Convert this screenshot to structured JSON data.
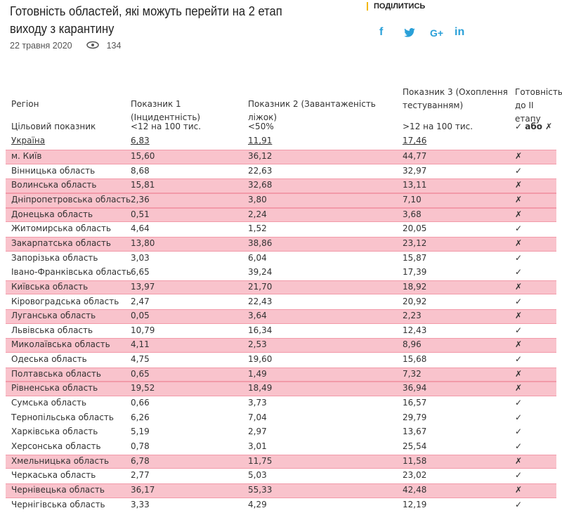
{
  "header": {
    "title": "Готовність областей, які можуть перейти на 2 етап виходу з карантину",
    "date": "22 травня 2020",
    "views": "134",
    "share_label": "ПОДІЛИТИСЬ",
    "social": [
      "f",
      "G+",
      "in"
    ]
  },
  "table": {
    "columns": [
      "Регіон",
      "Показник 1 (Інцидентність)",
      "Показник 2 (Завантаженість ліжок)",
      "Показник 3 (Охоплення тестуванням)",
      "Готовність до II етапу"
    ],
    "target": [
      "Цільовий показник",
      "<12 на 100 тис.",
      "<50%",
      ">12 на 100 тис.",
      "✓ або ✗"
    ],
    "national": [
      "Україна",
      "6,83",
      "11,91",
      "17,46"
    ],
    "rows": [
      {
        "cells": [
          "м. Київ",
          "15,60",
          "36,12",
          "44,77",
          "✗"
        ],
        "highlight": true
      },
      {
        "cells": [
          "Вінницька область",
          "8,68",
          "22,63",
          "32,97",
          "✓"
        ],
        "highlight": false
      },
      {
        "cells": [
          "Волинська область",
          "15,81",
          "32,68",
          "13,11",
          "✗"
        ],
        "highlight": true
      },
      {
        "cells": [
          "Дніпропетровська область",
          "2,36",
          "3,80",
          "7,10",
          "✗"
        ],
        "highlight": true
      },
      {
        "cells": [
          "Донецька область",
          "0,51",
          "2,24",
          "3,68",
          "✗"
        ],
        "highlight": true
      },
      {
        "cells": [
          "Житомирська область",
          "4,64",
          "1,52",
          "20,05",
          "✓"
        ],
        "highlight": false
      },
      {
        "cells": [
          "Закарпатська область",
          "13,80",
          "38,86",
          "23,12",
          "✗"
        ],
        "highlight": true
      },
      {
        "cells": [
          "Запорізька область",
          "3,03",
          "6,04",
          "15,87",
          "✓"
        ],
        "highlight": false
      },
      {
        "cells": [
          "Івано-Франківська область",
          "6,65",
          "39,24",
          "17,39",
          "✓"
        ],
        "highlight": false
      },
      {
        "cells": [
          "Київська область",
          "13,97",
          "21,70",
          "18,92",
          "✗"
        ],
        "highlight": true
      },
      {
        "cells": [
          "Кіровоградська область",
          "2,47",
          "22,43",
          "20,92",
          "✓"
        ],
        "highlight": false
      },
      {
        "cells": [
          "Луганська область",
          "0,05",
          "3,64",
          "2,23",
          "✗"
        ],
        "highlight": true
      },
      {
        "cells": [
          "Львівська область",
          "10,79",
          "16,34",
          "12,43",
          "✓"
        ],
        "highlight": false
      },
      {
        "cells": [
          "Миколаївська область",
          "4,11",
          "2,53",
          "8,96",
          "✗"
        ],
        "highlight": true
      },
      {
        "cells": [
          "Одеська область",
          "4,75",
          "19,60",
          "15,68",
          "✓"
        ],
        "highlight": false
      },
      {
        "cells": [
          "Полтавська область",
          "0,65",
          "1,49",
          "7,32",
          "✗"
        ],
        "highlight": true
      },
      {
        "cells": [
          "Рівненська область",
          "19,52",
          "18,49",
          "36,94",
          "✗"
        ],
        "highlight": true
      },
      {
        "cells": [
          "Сумська область",
          "0,66",
          "3,73",
          "16,57",
          "✓"
        ],
        "highlight": false
      },
      {
        "cells": [
          "Тернопільська область",
          "6,26",
          "7,04",
          "29,79",
          "✓"
        ],
        "highlight": false
      },
      {
        "cells": [
          "Харківська область",
          "5,19",
          "2,97",
          "13,67",
          "✓"
        ],
        "highlight": false
      },
      {
        "cells": [
          "Херсонська область",
          "0,78",
          "3,01",
          "25,54",
          "✓"
        ],
        "highlight": false
      },
      {
        "cells": [
          "Хмельницька область",
          "6,78",
          "11,75",
          "11,58",
          "✗"
        ],
        "highlight": true
      },
      {
        "cells": [
          "Черкаська область",
          "2,77",
          "5,03",
          "23,02",
          "✓"
        ],
        "highlight": false
      },
      {
        "cells": [
          "Чернівецька область",
          "36,17",
          "55,33",
          "42,48",
          "✗"
        ],
        "highlight": true
      },
      {
        "cells": [
          "Чернігівська область",
          "3,33",
          "4,29",
          "12,19",
          "✓"
        ],
        "highlight": false
      }
    ]
  }
}
